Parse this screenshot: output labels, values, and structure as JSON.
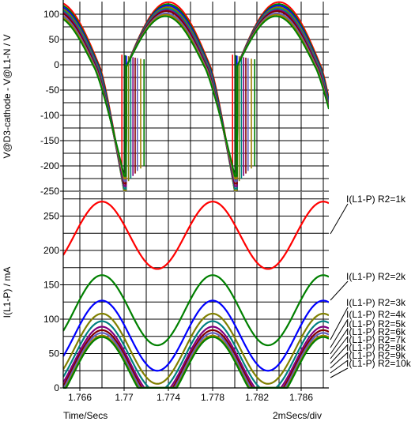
{
  "chart_data": [
    {
      "type": "line",
      "ylabel": "V@D3-cathode - V@L1-N / V",
      "ylim": [
        -250,
        125
      ],
      "yticks": [
        100,
        50,
        0,
        -50,
        -100,
        -150,
        -200,
        -250
      ],
      "xlim": [
        1.7645,
        1.7885
      ],
      "x_period_s": 0.01,
      "negative_peak_x": [
        1.77,
        1.78
      ],
      "series": [
        {
          "color": "#ff0000",
          "positive_peak": 128,
          "negative_peak": -250,
          "spike_x": 1.7698
        },
        {
          "color": "#008000",
          "positive_peak": 124,
          "negative_peak": -250,
          "spike_x": 1.7701
        },
        {
          "color": "#0000ff",
          "positive_peak": 121,
          "negative_peak": -250,
          "spike_x": 1.7702
        },
        {
          "color": "#808000",
          "positive_peak": 118,
          "negative_peak": -250,
          "spike_x": 1.7704
        },
        {
          "color": "#008080",
          "positive_peak": 115,
          "negative_peak": -245,
          "spike_x": 1.7706
        },
        {
          "color": "#800080",
          "positive_peak": 112,
          "negative_peak": -240,
          "spike_x": 1.7708
        },
        {
          "color": "#800000",
          "positive_peak": 110,
          "negative_peak": -235,
          "spike_x": 1.771
        },
        {
          "color": "#6060c0",
          "positive_peak": 106,
          "negative_peak": -230,
          "spike_x": 1.7712
        },
        {
          "color": "#a08000",
          "positive_peak": 103,
          "negative_peak": -225,
          "spike_x": 1.7715
        },
        {
          "color": "#008000",
          "positive_peak": 100,
          "negative_peak": -220,
          "spike_x": 1.7718
        }
      ]
    },
    {
      "type": "line",
      "ylabel": "I(L1-P) / mA",
      "ylim": [
        0,
        285
      ],
      "yticks": [
        250,
        200,
        150,
        100,
        50,
        0
      ],
      "xticks": [
        1.766,
        1.77,
        1.774,
        1.778,
        1.782,
        1.786
      ],
      "xtick_labels": [
        "1.766",
        "1.77",
        "1.774",
        "1.778",
        "1.782",
        "1.786"
      ],
      "xlim": [
        1.7645,
        1.7885
      ],
      "x_period_s": 0.01,
      "peak_x": [
        1.768,
        1.778,
        1.788
      ],
      "xlabel": "Time/Secs",
      "xscale_label": "2mSecs/div",
      "series": [
        {
          "name": "I(L1-P) R2=1k",
          "color": "#ff0000",
          "mean": 222,
          "amplitude": 49
        },
        {
          "name": "I(L1-P) R2=2k",
          "color": "#008000",
          "mean": 113,
          "amplitude": 51
        },
        {
          "name": "I(L1-P) R2=3k",
          "color": "#0000ff",
          "mean": 76,
          "amplitude": 51
        },
        {
          "name": "I(L1-P) R2=4k",
          "color": "#808000",
          "mean": 57,
          "amplitude": 51
        },
        {
          "name": "I(L1-P) R2=5k",
          "color": "#008080",
          "mean": 46,
          "amplitude": 51
        },
        {
          "name": "I(L1-P) R2=6k",
          "color": "#800080",
          "mean": 38,
          "amplitude": 51
        },
        {
          "name": "I(L1-P) R2=7k",
          "color": "#800000",
          "mean": 33,
          "amplitude": 51
        },
        {
          "name": "I(L1-P) R2=8k",
          "color": "#6060c0",
          "mean": 29,
          "amplitude": 51
        },
        {
          "name": "I(L1-P) R2=9k",
          "color": "#a08000",
          "mean": 25,
          "amplitude": 51
        },
        {
          "name": "I(L1-P) R2=10k",
          "color": "#008000",
          "mean": 23,
          "amplitude": 51
        }
      ]
    }
  ]
}
